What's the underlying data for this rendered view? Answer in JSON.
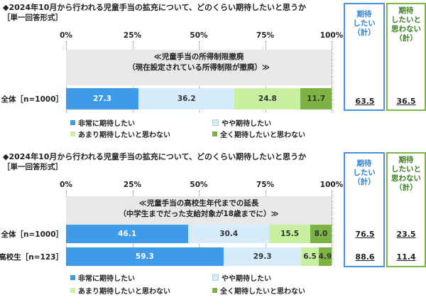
{
  "colors": {
    "very": "#3d9be9",
    "somewhat": "#d6ecfb",
    "notmuch": "#c9f0a1",
    "notatall": "#7cb342",
    "sum_expect": "#4a90e2",
    "sum_notexpect": "#7cb342"
  },
  "chart_data": [
    {
      "type": "bar",
      "orientation": "horizontal-stacked",
      "title": "◆2024年10月から行われる児童手当の拡充について、どのくらい期待したいと思うか",
      "subtitle": "［単一回答形式］",
      "note": [
        "≪児童手当の所得制限撤廃",
        "（現在設定されている所得制限が撤廃）≫"
      ],
      "ticks": [
        "0%",
        "25%",
        "50%",
        "75%",
        "100%"
      ],
      "xlim": [
        0,
        100
      ],
      "categories": [
        "全体［n=1000］"
      ],
      "series": [
        {
          "name": "非常に期待したい",
          "values": [
            27.3
          ]
        },
        {
          "name": "やや期待したい",
          "values": [
            36.2
          ]
        },
        {
          "name": "あまり期待したいと思わない",
          "values": [
            24.8
          ]
        },
        {
          "name": "全く期待したいと思わない",
          "values": [
            11.7
          ]
        }
      ],
      "summary_headers": [
        [
          "期待",
          "したい",
          "（計）"
        ],
        [
          "期待",
          "したいと",
          "思わない",
          "（計）"
        ]
      ],
      "summary": [
        [
          "63.5",
          "36.5"
        ]
      ]
    },
    {
      "type": "bar",
      "orientation": "horizontal-stacked",
      "title": "◆2024年10月から行われる児童手当の拡充について、どのくらい期待したいと思うか",
      "subtitle": "［単一回答形式］",
      "note": [
        "≪児童手当の高校生年代までの延長",
        "（中学生までだった支給対象が18歳までに）≫"
      ],
      "ticks": [
        "0%",
        "25%",
        "50%",
        "75%",
        "100%"
      ],
      "xlim": [
        0,
        100
      ],
      "categories": [
        "全体［n=1000］",
        "高校生［n=123］"
      ],
      "series": [
        {
          "name": "非常に期待したい",
          "values": [
            46.1,
            59.3
          ]
        },
        {
          "name": "やや期待したい",
          "values": [
            30.4,
            29.3
          ]
        },
        {
          "name": "あまり期待したいと思わない",
          "values": [
            15.5,
            6.5
          ]
        },
        {
          "name": "全く期待したいと思わない",
          "values": [
            8.0,
            4.9
          ]
        }
      ],
      "summary_headers": [
        [
          "期待",
          "したい",
          "（計）"
        ],
        [
          "期待",
          "したいと",
          "思わない",
          "（計）"
        ]
      ],
      "summary": [
        [
          "76.5",
          "23.5"
        ],
        [
          "88.6",
          "11.4"
        ]
      ]
    }
  ]
}
